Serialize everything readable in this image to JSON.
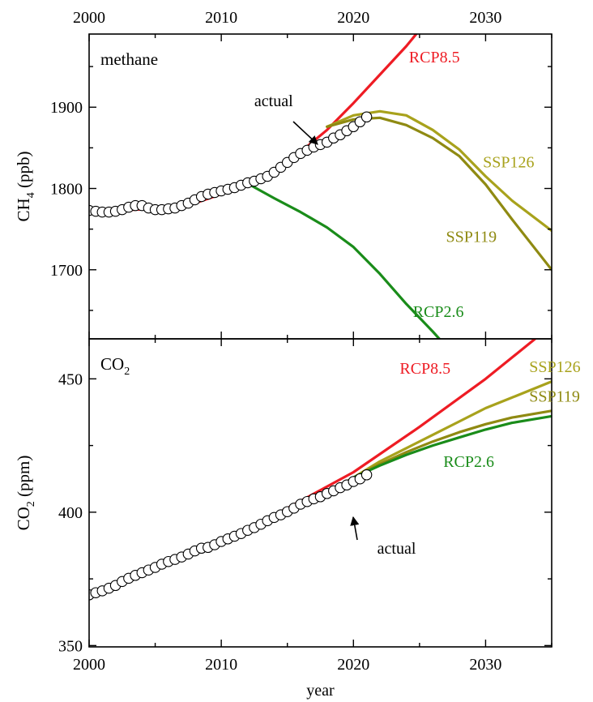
{
  "colors": {
    "rcp85": "#ee1c24",
    "ssp": "#a8a21c",
    "ssp126": "#a8a21c",
    "ssp119": "#8f8a12",
    "rcp26": "#1a8c1a",
    "axis": "#000000"
  },
  "shared_x": {
    "label": "year",
    "lim": [
      2000,
      2035
    ],
    "ticks": [
      "2000",
      "2010",
      "2020",
      "2030"
    ]
  },
  "chart_data": [
    {
      "type": "line",
      "panel": "methane",
      "panel_label": "methane",
      "ylabel_main": "CH",
      "ylabel_sub": "4",
      "ylabel_tail": " (ppb)",
      "xlim": [
        2000,
        2035
      ],
      "ylim": [
        1615,
        1990
      ],
      "yticks": [
        1700,
        1800,
        1900
      ],
      "grid": false,
      "series": [
        {
          "name": "RCP8.5",
          "color": "rcp85",
          "x": [
            2000,
            2005,
            2008,
            2010,
            2012,
            2014,
            2016,
            2018,
            2020,
            2022,
            2024,
            2025
          ],
          "y": [
            1772,
            1775,
            1782,
            1793,
            1805,
            1822,
            1845,
            1872,
            1905,
            1940,
            1975,
            1995
          ]
        },
        {
          "name": "RCP2.6",
          "color": "rcp26",
          "x": [
            2012,
            2014,
            2016,
            2018,
            2020,
            2022,
            2024,
            2026,
            2026.5
          ],
          "y": [
            1806,
            1788,
            1771,
            1752,
            1728,
            1695,
            1658,
            1624,
            1615
          ]
        },
        {
          "name": "SSP126",
          "color": "ssp126",
          "x": [
            2018,
            2020,
            2022,
            2024,
            2026,
            2028,
            2030,
            2032,
            2035
          ],
          "y": [
            1876,
            1890,
            1895,
            1890,
            1872,
            1848,
            1815,
            1785,
            1748
          ]
        },
        {
          "name": "SSP119",
          "color": "ssp119",
          "x": [
            2018,
            2020,
            2022,
            2024,
            2026,
            2028,
            2030,
            2032,
            2035
          ],
          "y": [
            1876,
            1885,
            1887,
            1878,
            1862,
            1840,
            1805,
            1762,
            1700
          ]
        }
      ],
      "actual": {
        "name": "actual",
        "x": [
          2000,
          2000.5,
          2001,
          2001.5,
          2002,
          2002.5,
          2003,
          2003.5,
          2004,
          2004.5,
          2005,
          2005.5,
          2006,
          2006.5,
          2007,
          2007.5,
          2008,
          2008.5,
          2009,
          2009.5,
          2010,
          2010.5,
          2011,
          2011.5,
          2012,
          2012.5,
          2013,
          2013.5,
          2014,
          2014.5,
          2015,
          2015.5,
          2016,
          2016.5,
          2017,
          2017.5,
          2018,
          2018.5,
          2019,
          2019.5,
          2020,
          2020.5,
          2021
        ],
        "y": [
          1773,
          1772,
          1771,
          1771,
          1772,
          1774,
          1777,
          1779,
          1779,
          1776,
          1774,
          1774,
          1775,
          1776,
          1779,
          1782,
          1786,
          1790,
          1793,
          1795,
          1797,
          1799,
          1801,
          1804,
          1807,
          1809,
          1812,
          1815,
          1820,
          1826,
          1832,
          1838,
          1843,
          1847,
          1851,
          1854,
          1857,
          1862,
          1866,
          1871,
          1876,
          1882,
          1888
        ]
      },
      "annotations": [
        {
          "text": "methane"
        },
        {
          "text": "RCP8.5",
          "x": 2024.2,
          "y": 1955,
          "color": "rcp85"
        },
        {
          "text": "actual",
          "x": 2012.5,
          "y": 1901,
          "color": "axis"
        },
        {
          "text": "SSP126",
          "x": 2029.8,
          "y": 1826,
          "color": "ssp126"
        },
        {
          "text": "SSP119",
          "x": 2027.0,
          "y": 1734,
          "color": "ssp119"
        },
        {
          "text": "RCP2.6",
          "x": 2024.5,
          "y": 1642,
          "color": "rcp26"
        }
      ]
    },
    {
      "type": "line",
      "panel": "co2",
      "panel_label_main": "CO",
      "panel_label_sub": "2",
      "ylabel_main": "CO",
      "ylabel_sub": "2",
      "ylabel_tail": " (ppm)",
      "xlim": [
        2000,
        2035
      ],
      "ylim": [
        349.5,
        465
      ],
      "yticks": [
        350,
        400,
        450
      ],
      "grid": false,
      "series": [
        {
          "name": "RCP8.5",
          "color": "rcp85",
          "x": [
            2000,
            2005,
            2010,
            2015,
            2020,
            2025,
            2030,
            2035
          ],
          "y": [
            369.5,
            379,
            389,
            401.5,
            415,
            432,
            450,
            470
          ]
        },
        {
          "name": "SSP126",
          "color": "ssp126",
          "x": [
            2018,
            2020,
            2022,
            2024,
            2026,
            2028,
            2030,
            2032,
            2035
          ],
          "y": [
            407,
            413,
            419,
            424,
            429,
            434,
            439,
            443,
            449
          ]
        },
        {
          "name": "SSP119",
          "color": "ssp119",
          "x": [
            2018,
            2020,
            2022,
            2024,
            2026,
            2028,
            2030,
            2032,
            2035
          ],
          "y": [
            407,
            413,
            418,
            422.5,
            426.5,
            430,
            433,
            435.5,
            438
          ]
        },
        {
          "name": "RCP2.6",
          "color": "rcp26",
          "x": [
            2020,
            2022,
            2024,
            2026,
            2028,
            2030,
            2032,
            2035
          ],
          "y": [
            413,
            417.5,
            421.5,
            425,
            428,
            431,
            433.5,
            436
          ]
        }
      ],
      "actual": {
        "name": "actual",
        "x": [
          2000,
          2000.5,
          2001,
          2001.5,
          2002,
          2002.5,
          2003,
          2003.5,
          2004,
          2004.5,
          2005,
          2005.5,
          2006,
          2006.5,
          2007,
          2007.5,
          2008,
          2008.5,
          2009,
          2009.5,
          2010,
          2010.5,
          2011,
          2011.5,
          2012,
          2012.5,
          2013,
          2013.5,
          2014,
          2014.5,
          2015,
          2015.5,
          2016,
          2016.5,
          2017,
          2017.5,
          2018,
          2018.5,
          2019,
          2019.5,
          2020,
          2020.5,
          2021
        ],
        "y": [
          369,
          369.8,
          370.5,
          371.5,
          372.5,
          374,
          375.2,
          376.3,
          377.3,
          378.3,
          379.3,
          380.5,
          381.5,
          382.3,
          383.2,
          384.3,
          385.5,
          386.5,
          386.8,
          387.8,
          389,
          390,
          391,
          392,
          393.2,
          394.2,
          395.5,
          396.8,
          398,
          399,
          400.2,
          401.5,
          403,
          404,
          405,
          405.8,
          407,
          408,
          409.2,
          410.2,
          411.5,
          412.5,
          414
        ]
      },
      "annotations": [
        {
          "text": "CO"
        },
        {
          "text": "RCP8.5",
          "x": 2023.5,
          "y": 452,
          "color": "rcp85"
        },
        {
          "text": "SSP126",
          "x": 2033.3,
          "y": 452.5,
          "color": "ssp126"
        },
        {
          "text": "SSP119",
          "x": 2033.3,
          "y": 441.5,
          "color": "ssp119"
        },
        {
          "text": "RCP2.6",
          "x": 2026.8,
          "y": 417,
          "color": "rcp26"
        },
        {
          "text": "actual",
          "x": 2021.8,
          "y": 384.5,
          "color": "axis"
        }
      ]
    }
  ]
}
